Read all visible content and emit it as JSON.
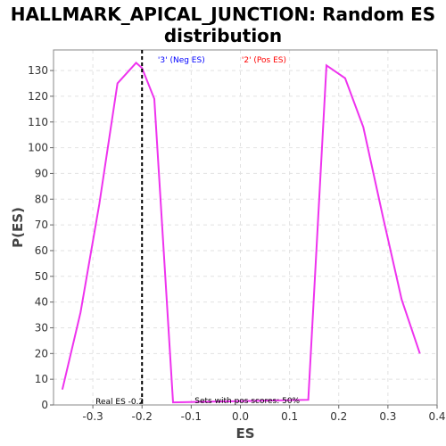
{
  "chart_data": {
    "type": "line",
    "title": "HALLMARK_APICAL_JUNCTION: Random ES distribution",
    "title_lines": [
      "HALLMARK_APICAL_JUNCTION: Random ES",
      "distribution"
    ],
    "xlabel": "ES",
    "ylabel": "P(ES)",
    "xlim": [
      -0.38,
      0.4
    ],
    "ylim": [
      0,
      138
    ],
    "x_ticks": [
      -0.3,
      -0.2,
      -0.1,
      0.0,
      0.1,
      0.2,
      0.3,
      0.4
    ],
    "x_tick_labels": [
      "-0.3",
      "-0.2",
      "-0.1",
      "0.0",
      "0.1",
      "0.2",
      "0.3",
      "0.4"
    ],
    "y_ticks": [
      0,
      10,
      20,
      30,
      40,
      50,
      60,
      70,
      80,
      90,
      100,
      110,
      120,
      130
    ],
    "y_tick_labels": [
      "0",
      "10",
      "20",
      "30",
      "40",
      "50",
      "60",
      "70",
      "80",
      "90",
      "100",
      "110",
      "120",
      "130"
    ],
    "grid": true,
    "series": [
      {
        "color": "#ee33ee",
        "x": [
          -0.362,
          -0.325,
          -0.287,
          -0.25,
          -0.212,
          -0.2,
          -0.175,
          -0.137,
          0.138,
          0.175,
          0.213,
          0.25,
          0.29,
          0.328,
          0.365
        ],
        "y": [
          6,
          36,
          78,
          125,
          133,
          131,
          119,
          1,
          2,
          132,
          127,
          108,
          73,
          41,
          20
        ]
      }
    ],
    "annotations": {
      "neg_label": "'3' (Neg ES)",
      "neg_color": "#0000ff",
      "pos_label": "'2' (Pos ES)",
      "pos_color": "#ff0000",
      "real_es_value": -0.2,
      "real_es_label": "Real ES -0.2",
      "pos_scores_label": "Sets with pos scores: 50%"
    }
  }
}
